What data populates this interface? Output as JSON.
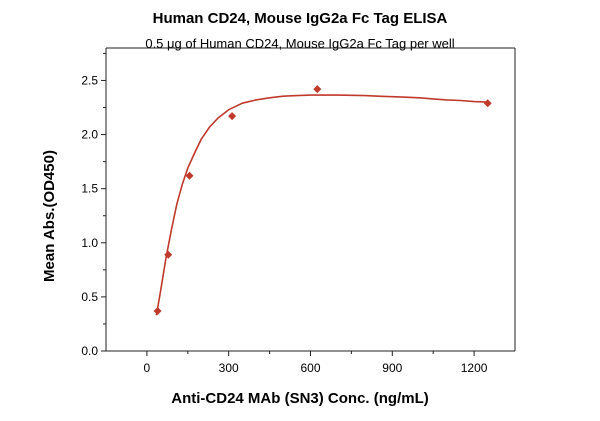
{
  "chart_data": {
    "type": "scatter",
    "title": "Human CD24, Mouse IgG2a Fc Tag ELISA",
    "subtitle": "0.5 μg of Human CD24, Mouse IgG2a Fc Tag per well",
    "xlabel": "Anti-CD24 MAb (SN3) Conc. (ng/mL)",
    "ylabel": "Mean Abs.(OD450)",
    "xlim": [
      -150,
      1350
    ],
    "ylim": [
      0,
      2.8
    ],
    "xticks": [
      0,
      300,
      600,
      900,
      1200
    ],
    "xtick_labels": [
      "0",
      "300",
      "600",
      "900",
      "1200"
    ],
    "yticks": [
      0.0,
      0.5,
      1.0,
      1.5,
      2.0,
      2.5
    ],
    "ytick_labels": [
      "0.0",
      "0.5",
      "1.0",
      "1.5",
      "2.0",
      "2.5"
    ],
    "series": [
      {
        "name": "Measured",
        "color": "#c0392b",
        "marker": "diamond",
        "x": [
          39.06,
          78.13,
          156.25,
          312.5,
          625,
          1250
        ],
        "y": [
          0.37,
          0.89,
          1.62,
          2.17,
          2.42,
          2.29
        ]
      }
    ],
    "fit": {
      "name": "Fitted curve",
      "color": "#c0392b",
      "x": [
        35,
        50,
        70,
        90,
        110,
        130,
        150,
        175,
        200,
        230,
        260,
        300,
        350,
        400,
        450,
        500,
        550,
        600,
        650,
        700,
        750,
        800,
        850,
        900,
        950,
        1000,
        1050,
        1100,
        1150,
        1200,
        1250
      ],
      "y": [
        0.33,
        0.55,
        0.86,
        1.12,
        1.36,
        1.54,
        1.69,
        1.83,
        1.96,
        2.07,
        2.15,
        2.23,
        2.29,
        2.32,
        2.34,
        2.355,
        2.36,
        2.365,
        2.365,
        2.365,
        2.363,
        2.36,
        2.355,
        2.35,
        2.345,
        2.34,
        2.33,
        2.32,
        2.315,
        2.305,
        2.3
      ]
    },
    "grid": false,
    "legend": "none"
  }
}
